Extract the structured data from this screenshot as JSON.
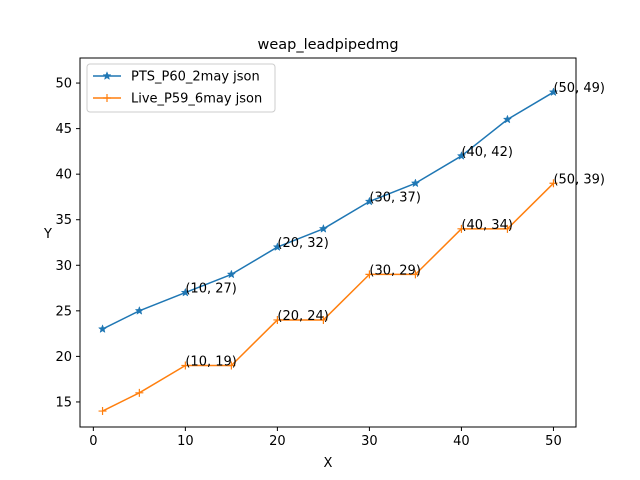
{
  "chart_data": {
    "type": "line",
    "title": "weap_leadpipedmg",
    "xlabel": "X",
    "ylabel": "Y",
    "xlim": [
      -1.45,
      52.45
    ],
    "ylim": [
      12.25,
      52.75
    ],
    "xticks": [
      0,
      10,
      20,
      30,
      40,
      50
    ],
    "yticks": [
      15,
      20,
      25,
      30,
      35,
      40,
      45,
      50
    ],
    "grid": false,
    "legend_position": "upper-left",
    "series": [
      {
        "name": "PTS_P60_2may json",
        "color": "#1f77b4",
        "marker": "star",
        "x": [
          1,
          5,
          10,
          15,
          20,
          25,
          30,
          35,
          40,
          45,
          50
        ],
        "y": [
          23,
          25,
          27,
          29,
          32,
          34,
          37,
          39,
          42,
          46,
          49
        ]
      },
      {
        "name": "Live_P59_6may json",
        "color": "#ff7f0e",
        "marker": "plus",
        "x": [
          1,
          5,
          10,
          15,
          20,
          25,
          30,
          35,
          40,
          45,
          50
        ],
        "y": [
          14,
          16,
          19,
          19,
          24,
          24,
          29,
          29,
          34,
          34,
          39
        ]
      }
    ],
    "annotations": [
      {
        "x": 10,
        "y": 27,
        "text": "(10, 27)"
      },
      {
        "x": 20,
        "y": 32,
        "text": "(20, 32)"
      },
      {
        "x": 30,
        "y": 37,
        "text": "(30, 37)"
      },
      {
        "x": 40,
        "y": 42,
        "text": "(40, 42)"
      },
      {
        "x": 50,
        "y": 49,
        "text": "(50, 49)"
      },
      {
        "x": 10,
        "y": 19,
        "text": "(10, 19)"
      },
      {
        "x": 20,
        "y": 24,
        "text": "(20, 24)"
      },
      {
        "x": 30,
        "y": 29,
        "text": "(30, 29)"
      },
      {
        "x": 40,
        "y": 34,
        "text": "(40, 34)"
      },
      {
        "x": 50,
        "y": 39,
        "text": "(50, 39)"
      }
    ]
  }
}
